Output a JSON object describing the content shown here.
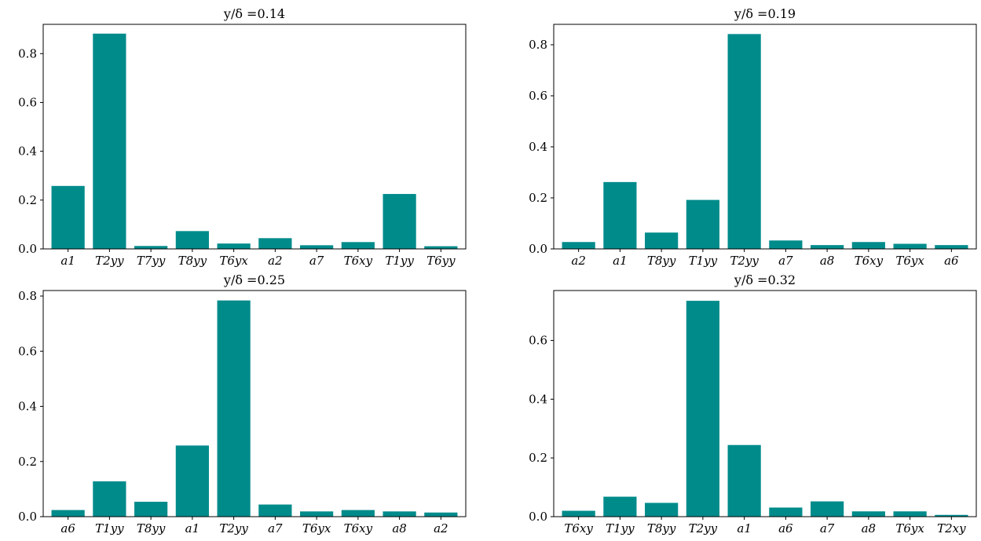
{
  "colors": {
    "bar": "#008b8b",
    "axis": "#000000",
    "background": "#ffffff"
  },
  "chart_data": [
    {
      "type": "bar",
      "title": "y/δ =0.14",
      "xlabel": "",
      "ylabel": "",
      "categories": [
        "a1",
        "T2yy",
        "T7yy",
        "T8yy",
        "T6yx",
        "a2",
        "a7",
        "T6xy",
        "T1yy",
        "T6yy"
      ],
      "values": [
        0.258,
        0.882,
        0.012,
        0.073,
        0.022,
        0.044,
        0.015,
        0.028,
        0.225,
        0.011
      ],
      "ylim": [
        0,
        0.92
      ],
      "yticks": [
        0.0,
        0.2,
        0.4,
        0.6,
        0.8
      ],
      "ytick_labels": [
        "0.0",
        "0.2",
        "0.4",
        "0.6",
        "0.8"
      ],
      "grid": false
    },
    {
      "type": "bar",
      "title": "y/δ =0.19",
      "xlabel": "",
      "ylabel": "",
      "categories": [
        "a2",
        "a1",
        "T8yy",
        "T1yy",
        "T2yy",
        "a7",
        "a8",
        "T6xy",
        "T6yx",
        "a6"
      ],
      "values": [
        0.027,
        0.262,
        0.064,
        0.192,
        0.842,
        0.033,
        0.015,
        0.027,
        0.02,
        0.015
      ],
      "ylim": [
        0,
        0.88
      ],
      "yticks": [
        0.0,
        0.2,
        0.4,
        0.6,
        0.8
      ],
      "ytick_labels": [
        "0.0",
        "0.2",
        "0.4",
        "0.6",
        "0.8"
      ],
      "grid": false
    },
    {
      "type": "bar",
      "title": "y/δ =0.25",
      "xlabel": "",
      "ylabel": "",
      "categories": [
        "a6",
        "T1yy",
        "T8yy",
        "a1",
        "T2yy",
        "a7",
        "T6yx",
        "T6xy",
        "a8",
        "a2"
      ],
      "values": [
        0.024,
        0.128,
        0.054,
        0.258,
        0.784,
        0.044,
        0.019,
        0.024,
        0.019,
        0.015
      ],
      "ylim": [
        0,
        0.82
      ],
      "yticks": [
        0.0,
        0.2,
        0.4,
        0.6,
        0.8
      ],
      "ytick_labels": [
        "0.0",
        "0.2",
        "0.4",
        "0.6",
        "0.8"
      ],
      "grid": false
    },
    {
      "type": "bar",
      "title": "y/δ =0.32",
      "xlabel": "",
      "ylabel": "",
      "categories": [
        "T6xy",
        "T1yy",
        "T8yy",
        "T2yy",
        "a1",
        "a6",
        "a7",
        "a8",
        "T6yx",
        "T2xy"
      ],
      "values": [
        0.02,
        0.068,
        0.047,
        0.735,
        0.244,
        0.031,
        0.052,
        0.018,
        0.018,
        0.006
      ],
      "ylim": [
        0,
        0.77
      ],
      "yticks": [
        0.0,
        0.2,
        0.4,
        0.6
      ],
      "ytick_labels": [
        "0.0",
        "0.2",
        "0.4",
        "0.6"
      ],
      "grid": false
    }
  ]
}
